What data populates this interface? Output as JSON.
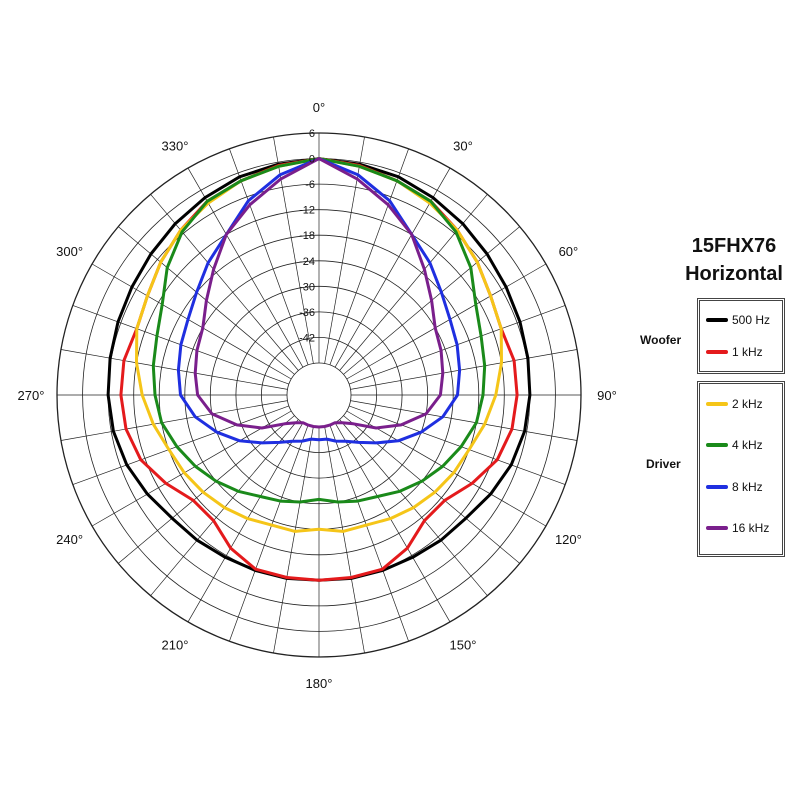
{
  "chart_data": {
    "type": "polar",
    "title": "15FHX76",
    "subtitle": "Horizontal",
    "angle_labels": [
      "0°",
      "30°",
      "60°",
      "90°",
      "120°",
      "150°",
      "180°",
      "210°",
      "240°",
      "270°",
      "300°",
      "330°"
    ],
    "radial_tick_labels": [
      "6",
      "0",
      "-6",
      "-12",
      "-18",
      "-24",
      "-30",
      "-36",
      "-42"
    ],
    "rlim": [
      -48,
      6
    ],
    "angular_grid_step_deg": 10,
    "radial_grid_step_db": 6,
    "legend_groups": [
      {
        "label": "Woofer",
        "series": [
          "500 Hz",
          "1 kHz"
        ]
      },
      {
        "label": "Driver",
        "series": [
          "2 kHz",
          "4 kHz",
          "8 kHz",
          "16 kHz"
        ]
      }
    ],
    "angles_deg": [
      0,
      10,
      20,
      30,
      40,
      50,
      60,
      70,
      80,
      90,
      100,
      110,
      120,
      130,
      140,
      150,
      160,
      170,
      180
    ],
    "series": [
      {
        "name": "500 Hz",
        "color": "#000000",
        "values": [
          0,
          -0.5,
          -1,
          -2,
          -3,
          -4,
          -4.8,
          -5.3,
          -5.7,
          -6,
          -6.5,
          -7.5,
          -9,
          -10.5,
          -11,
          -11.5,
          -11.7,
          -11.8,
          -12
        ]
      },
      {
        "name": "1 kHz",
        "color": "#e41a1c",
        "values": [
          0,
          -0.8,
          -2,
          -3,
          -5,
          -7,
          -9,
          -10,
          -9,
          -9,
          -9.5,
          -11,
          -14,
          -17,
          -17,
          -14,
          -12,
          -12,
          -12
        ]
      },
      {
        "name": "2 kHz",
        "color": "#f5c518",
        "values": [
          0,
          -1,
          -2,
          -3.5,
          -5,
          -7,
          -9,
          -10,
          -12,
          -14,
          -16,
          -18,
          -19,
          -20,
          -21,
          -22,
          -23,
          -23,
          -24
        ]
      },
      {
        "name": "4 kHz",
        "color": "#1a8a1a",
        "values": [
          0,
          -1,
          -2,
          -3,
          -5.5,
          -9,
          -13,
          -15,
          -16,
          -17,
          -18,
          -20,
          -22,
          -24,
          -26,
          -28,
          -29,
          -30,
          -31
        ]
      },
      {
        "name": "8 kHz",
        "color": "#1f2fe0",
        "values": [
          0,
          -3,
          -7,
          -12,
          -15,
          -18,
          -20,
          -21,
          -22,
          -23,
          -26,
          -30,
          -34,
          -38,
          -41,
          -43,
          -44,
          -45,
          -45
        ]
      },
      {
        "name": "16 kHz",
        "color": "#7a1f8c",
        "values": [
          0,
          -4,
          -8,
          -12,
          -17,
          -21,
          -24,
          -25,
          -26,
          -27,
          -30,
          -35,
          -40,
          -45,
          -47,
          -48,
          -48,
          -48,
          -48
        ]
      }
    ]
  },
  "legend": {
    "woofer_label": "Woofer",
    "driver_label": "Driver",
    "items": [
      "500 Hz",
      "1 kHz",
      "2 kHz",
      "4 kHz",
      "8 kHz",
      "16 kHz"
    ]
  }
}
